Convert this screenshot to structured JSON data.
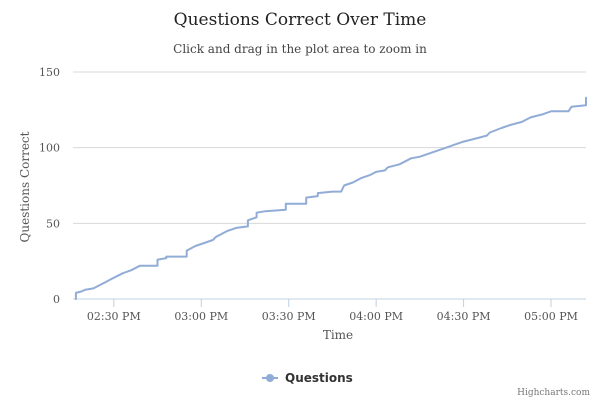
{
  "chart_data": {
    "type": "line",
    "title": "Questions Correct Over Time",
    "subtitle": "Click and drag in the plot area to zoom in",
    "xlabel": "Time",
    "ylabel": "Questions Correct",
    "x_axis_kind": "datetime",
    "x_range": [
      "14:16",
      "17:12"
    ],
    "ylim": [
      0,
      150
    ],
    "x_ticks": [
      {
        "t": "14:30",
        "label": "02:30 PM"
      },
      {
        "t": "15:00",
        "label": "03:00 PM"
      },
      {
        "t": "15:30",
        "label": "03:30 PM"
      },
      {
        "t": "16:00",
        "label": "04:00 PM"
      },
      {
        "t": "16:30",
        "label": "04:30 PM"
      },
      {
        "t": "17:00",
        "label": "05:00 PM"
      }
    ],
    "y_ticks": [
      {
        "value": 0,
        "label": "0"
      },
      {
        "value": 50,
        "label": "50"
      },
      {
        "value": 100,
        "label": "100"
      },
      {
        "value": 150,
        "label": "150"
      }
    ],
    "grid": "horizontal",
    "legend_position": "bottom-center",
    "series": [
      {
        "name": "Questions",
        "color": "#91acd6",
        "points": [
          [
            "14:17",
            0
          ],
          [
            "14:17",
            4
          ],
          [
            "14:19",
            5
          ],
          [
            "14:20",
            6
          ],
          [
            "14:23",
            7
          ],
          [
            "14:25",
            9
          ],
          [
            "14:27",
            11
          ],
          [
            "14:29",
            13
          ],
          [
            "14:31",
            15
          ],
          [
            "14:33",
            17
          ],
          [
            "14:36",
            19
          ],
          [
            "14:39",
            22
          ],
          [
            "14:45",
            22
          ],
          [
            "14:45",
            26
          ],
          [
            "14:48",
            27
          ],
          [
            "14:48",
            28
          ],
          [
            "14:55",
            28
          ],
          [
            "14:55",
            32
          ],
          [
            "14:58",
            35
          ],
          [
            "15:01",
            37
          ],
          [
            "15:04",
            39
          ],
          [
            "15:05",
            41
          ],
          [
            "15:07",
            43
          ],
          [
            "15:09",
            45
          ],
          [
            "15:12",
            47
          ],
          [
            "15:16",
            48
          ],
          [
            "15:16",
            52
          ],
          [
            "15:19",
            54
          ],
          [
            "15:19",
            57
          ],
          [
            "15:22",
            58
          ],
          [
            "15:29",
            59
          ],
          [
            "15:29",
            63
          ],
          [
            "15:36",
            63
          ],
          [
            "15:36",
            67
          ],
          [
            "15:40",
            68
          ],
          [
            "15:40",
            70
          ],
          [
            "15:45",
            71
          ],
          [
            "15:48",
            71
          ],
          [
            "15:49",
            75
          ],
          [
            "15:52",
            77
          ],
          [
            "15:55",
            80
          ],
          [
            "15:58",
            82
          ],
          [
            "16:00",
            84
          ],
          [
            "16:03",
            85
          ],
          [
            "16:04",
            87
          ],
          [
            "16:08",
            89
          ],
          [
            "16:10",
            91
          ],
          [
            "16:12",
            93
          ],
          [
            "16:15",
            94
          ],
          [
            "16:18",
            96
          ],
          [
            "16:21",
            98
          ],
          [
            "16:24",
            100
          ],
          [
            "16:27",
            102
          ],
          [
            "16:30",
            104
          ],
          [
            "16:34",
            106
          ],
          [
            "16:38",
            108
          ],
          [
            "16:39",
            110
          ],
          [
            "16:43",
            113
          ],
          [
            "16:46",
            115
          ],
          [
            "16:50",
            117
          ],
          [
            "16:53",
            120
          ],
          [
            "16:57",
            122
          ],
          [
            "17:00",
            124
          ],
          [
            "17:06",
            124
          ],
          [
            "17:07",
            127
          ],
          [
            "17:12",
            128
          ],
          [
            "17:12",
            133
          ]
        ]
      }
    ],
    "credits": "Highcharts.com"
  }
}
